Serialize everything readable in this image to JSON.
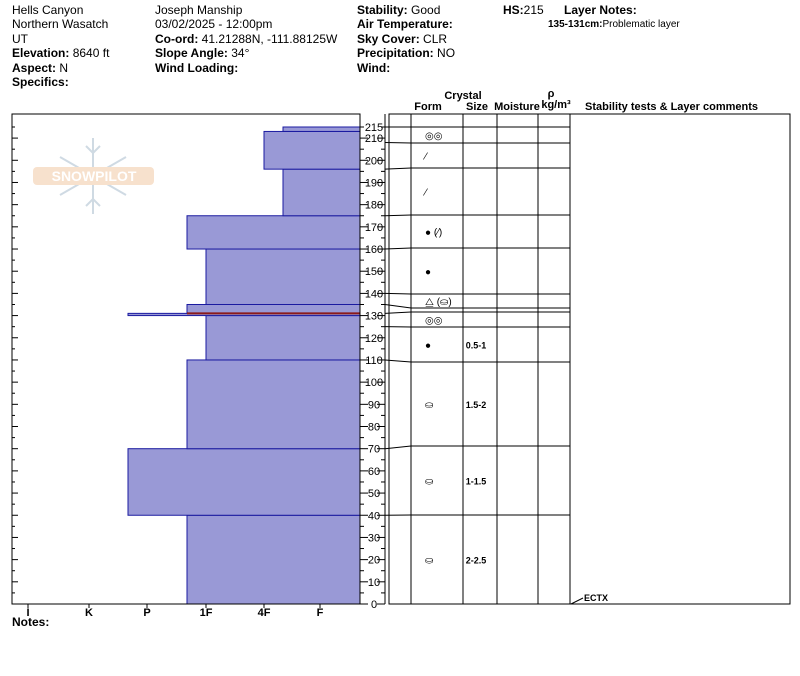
{
  "header": {
    "location": "Hells Canyon",
    "range": "Northern Wasatch",
    "state": "UT",
    "elevation_label": "Elevation:",
    "elevation": "8640 ft",
    "aspect_label": "Aspect:",
    "aspect": "N",
    "specifics_label": "Specifics:",
    "observer": "Joseph Manship",
    "datetime": "03/02/2025 - 12:00pm",
    "coord_label": "Co-ord:",
    "coord": "41.21288N, -111.88125W",
    "slope_label": "Slope Angle:",
    "slope": "34°",
    "wind_loading_label": "Wind Loading:",
    "stability_label": "Stability:",
    "stability": "Good",
    "air_temp_label": "Air Temperature:",
    "sky_label": "Sky Cover:",
    "sky": "CLR",
    "precip_label": "Precipitation:",
    "precip": "NO",
    "wind_label": "Wind:",
    "hs_label": "HS:",
    "hs": "215",
    "layer_notes_label": "Layer Notes:",
    "layer_note_range": "135-131cm:",
    "layer_note_text": "Problematic layer"
  },
  "columns": {
    "crystal": "Crystal",
    "form": "Form",
    "size": "Size",
    "moisture": "Moisture",
    "rho": "ρ",
    "density_unit": "kg/m³",
    "comments": "Stability tests & Layer comments"
  },
  "notes_label": "Notes:",
  "logo_text": "SNOWPILOT",
  "colors": {
    "layer_fill": "#9999d6",
    "layer_stroke": "#1a1aa0",
    "problem_layer": "#8b1a1a"
  },
  "chart_data": {
    "type": "bar",
    "orientation": "horizontal",
    "xlabel_ticks": [
      "I",
      "K",
      "P",
      "1F",
      "4F",
      "F"
    ],
    "y_ticks": [
      0,
      10,
      20,
      30,
      40,
      50,
      60,
      70,
      80,
      90,
      100,
      110,
      120,
      130,
      140,
      150,
      160,
      170,
      180,
      190,
      200,
      210,
      215
    ],
    "ylim": [
      0,
      215
    ],
    "hardness_layers": [
      {
        "bottom": 0,
        "top": 40,
        "hardness": "1F+"
      },
      {
        "bottom": 40,
        "top": 70,
        "hardness": "P+"
      },
      {
        "bottom": 70,
        "top": 110,
        "hardness": "1F+"
      },
      {
        "bottom": 110,
        "top": 130,
        "hardness": "1F"
      },
      {
        "bottom": 130,
        "top": 131,
        "hardness": "P+"
      },
      {
        "bottom": 131,
        "top": 135,
        "hardness": "1F+"
      },
      {
        "bottom": 135,
        "top": 160,
        "hardness": "1F"
      },
      {
        "bottom": 160,
        "top": 175,
        "hardness": "1F+"
      },
      {
        "bottom": 175,
        "top": 196,
        "hardness": "4F-"
      },
      {
        "bottom": 196,
        "top": 213,
        "hardness": "4F"
      },
      {
        "bottom": 213,
        "top": 215,
        "hardness": "4F-"
      }
    ],
    "grain_layers": [
      {
        "bottom": 0,
        "top": 40,
        "form": "⛀",
        "size": "2-2.5"
      },
      {
        "bottom": 40,
        "top": 70,
        "form": "⛀",
        "size": "1-1.5"
      },
      {
        "bottom": 70,
        "top": 110,
        "form": "⛀",
        "size": "1.5-2"
      },
      {
        "bottom": 110,
        "top": 125,
        "form": "●",
        "size": "0.5-1"
      },
      {
        "bottom": 125,
        "top": 131,
        "form": "◎◎",
        "size": ""
      },
      {
        "bottom": 131,
        "top": 135,
        "form": "",
        "size": ""
      },
      {
        "bottom": 135,
        "top": 140,
        "form": "⧋ (⛀)",
        "size": ""
      },
      {
        "bottom": 140,
        "top": 160,
        "form": "●",
        "size": ""
      },
      {
        "bottom": 160,
        "top": 175,
        "form": "● (⁄)",
        "size": ""
      },
      {
        "bottom": 175,
        "top": 196,
        "form": "⁄",
        "size": ""
      },
      {
        "bottom": 196,
        "top": 208,
        "form": "⁄",
        "size": ""
      },
      {
        "bottom": 208,
        "top": 215,
        "form": "◎◎",
        "size": ""
      }
    ],
    "tests": [
      {
        "height": 0,
        "label": "ECTX"
      }
    ]
  }
}
